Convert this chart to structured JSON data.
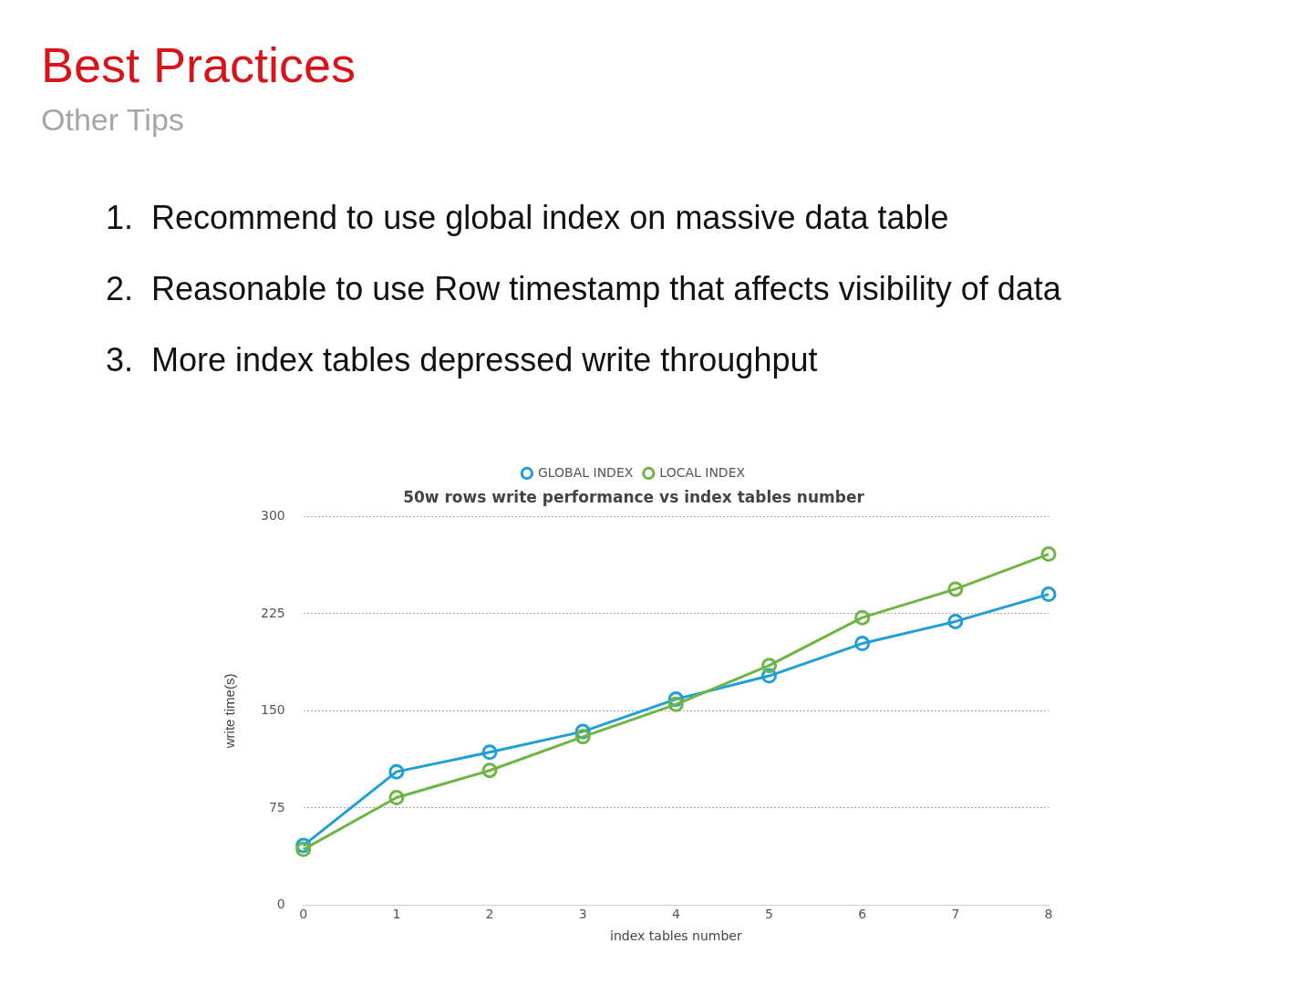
{
  "chart_data": {
    "type": "line",
    "title": "50w rows write performance vs index tables number",
    "xlabel": "index tables number",
    "ylabel": "write time(s)",
    "annotations": [
      "Best Practices",
      "Other Tips",
      "1.  Recommend to use global index on massive data table",
      "2.  Reasonable to use Row timestamp that affects visibility of data",
      "3.  More index tables depressed write throughput"
    ],
    "x": [
      0,
      1,
      2,
      3,
      4,
      5,
      6,
      7,
      8
    ],
    "series": [
      {
        "name": "GLOBAL INDEX",
        "color": "#1f9fd6",
        "values": [
          46,
          103,
          118,
          134,
          159,
          177,
          202,
          219,
          240
        ]
      },
      {
        "name": "LOCAL INDEX",
        "color": "#6db544",
        "values": [
          43,
          83,
          104,
          130,
          155,
          185,
          222,
          244,
          271
        ]
      }
    ],
    "xlim": [
      0,
      8
    ],
    "xticks": [
      0,
      1,
      2,
      3,
      4,
      5,
      6,
      7,
      8
    ],
    "ylim": [
      0,
      300
    ],
    "yticks": [
      0,
      75,
      150,
      225,
      300
    ],
    "grid": "y",
    "legend": "top",
    "marker": "circle",
    "line_style": "solid"
  }
}
